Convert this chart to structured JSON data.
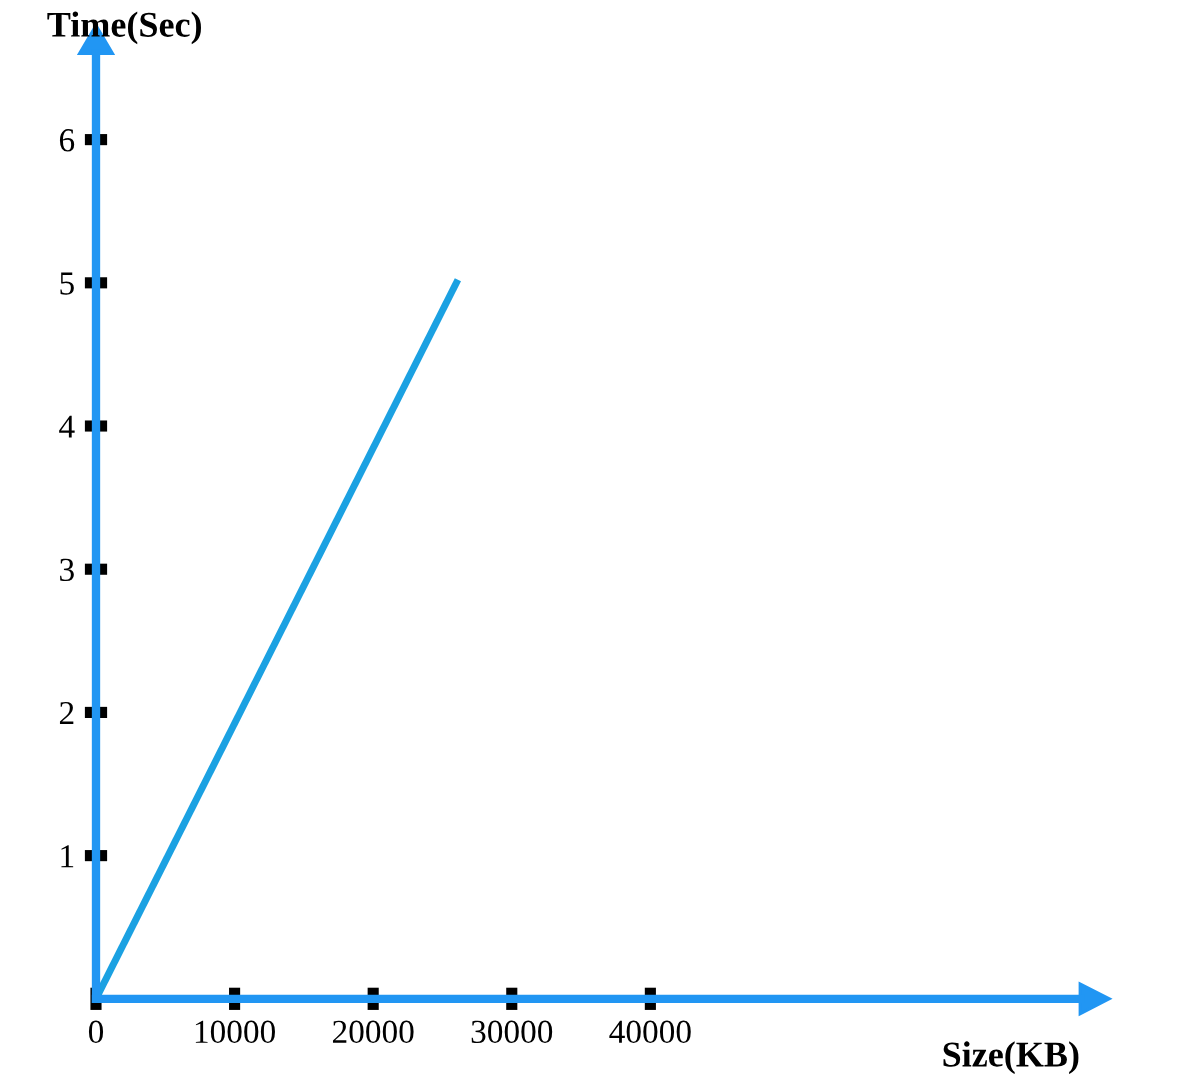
{
  "chart_data": {
    "type": "line",
    "xlabel": "Size(KB)",
    "ylabel": "Time(Sec)",
    "x": [
      0,
      26000
    ],
    "series": [
      {
        "color": "#1ba1e2",
        "values": [
          0,
          5
        ]
      }
    ],
    "xlim": [
      0,
      71000
    ],
    "ylim": [
      0,
      6.6
    ],
    "xticks": [
      0,
      10000,
      20000,
      30000,
      40000
    ],
    "yticks": [
      1,
      2,
      3,
      4,
      5,
      6
    ],
    "marker": "none",
    "line_style": "solid",
    "grid": false,
    "legend": false
  }
}
